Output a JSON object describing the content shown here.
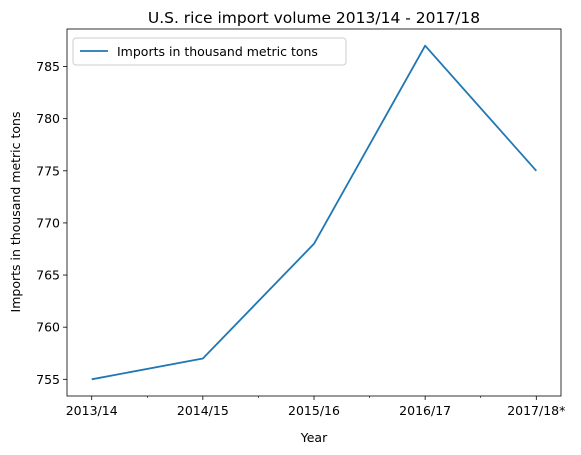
{
  "chart_data": {
    "type": "line",
    "title": "U.S. rice import volume 2013/14 - 2017/18",
    "xlabel": "Year",
    "ylabel": "Imports in thousand metric tons",
    "categories": [
      "2013/14",
      "2014/15",
      "2015/16",
      "2016/17",
      "2017/18*"
    ],
    "series": [
      {
        "name": "Imports in thousand metric tons",
        "values": [
          755,
          757,
          768,
          787,
          775
        ],
        "color": "#1f77b4"
      }
    ],
    "ylim": [
      753.4,
      788.6
    ],
    "yticks": [
      755,
      760,
      765,
      770,
      775,
      780,
      785
    ],
    "grid": false,
    "legend_position": "top-left"
  }
}
